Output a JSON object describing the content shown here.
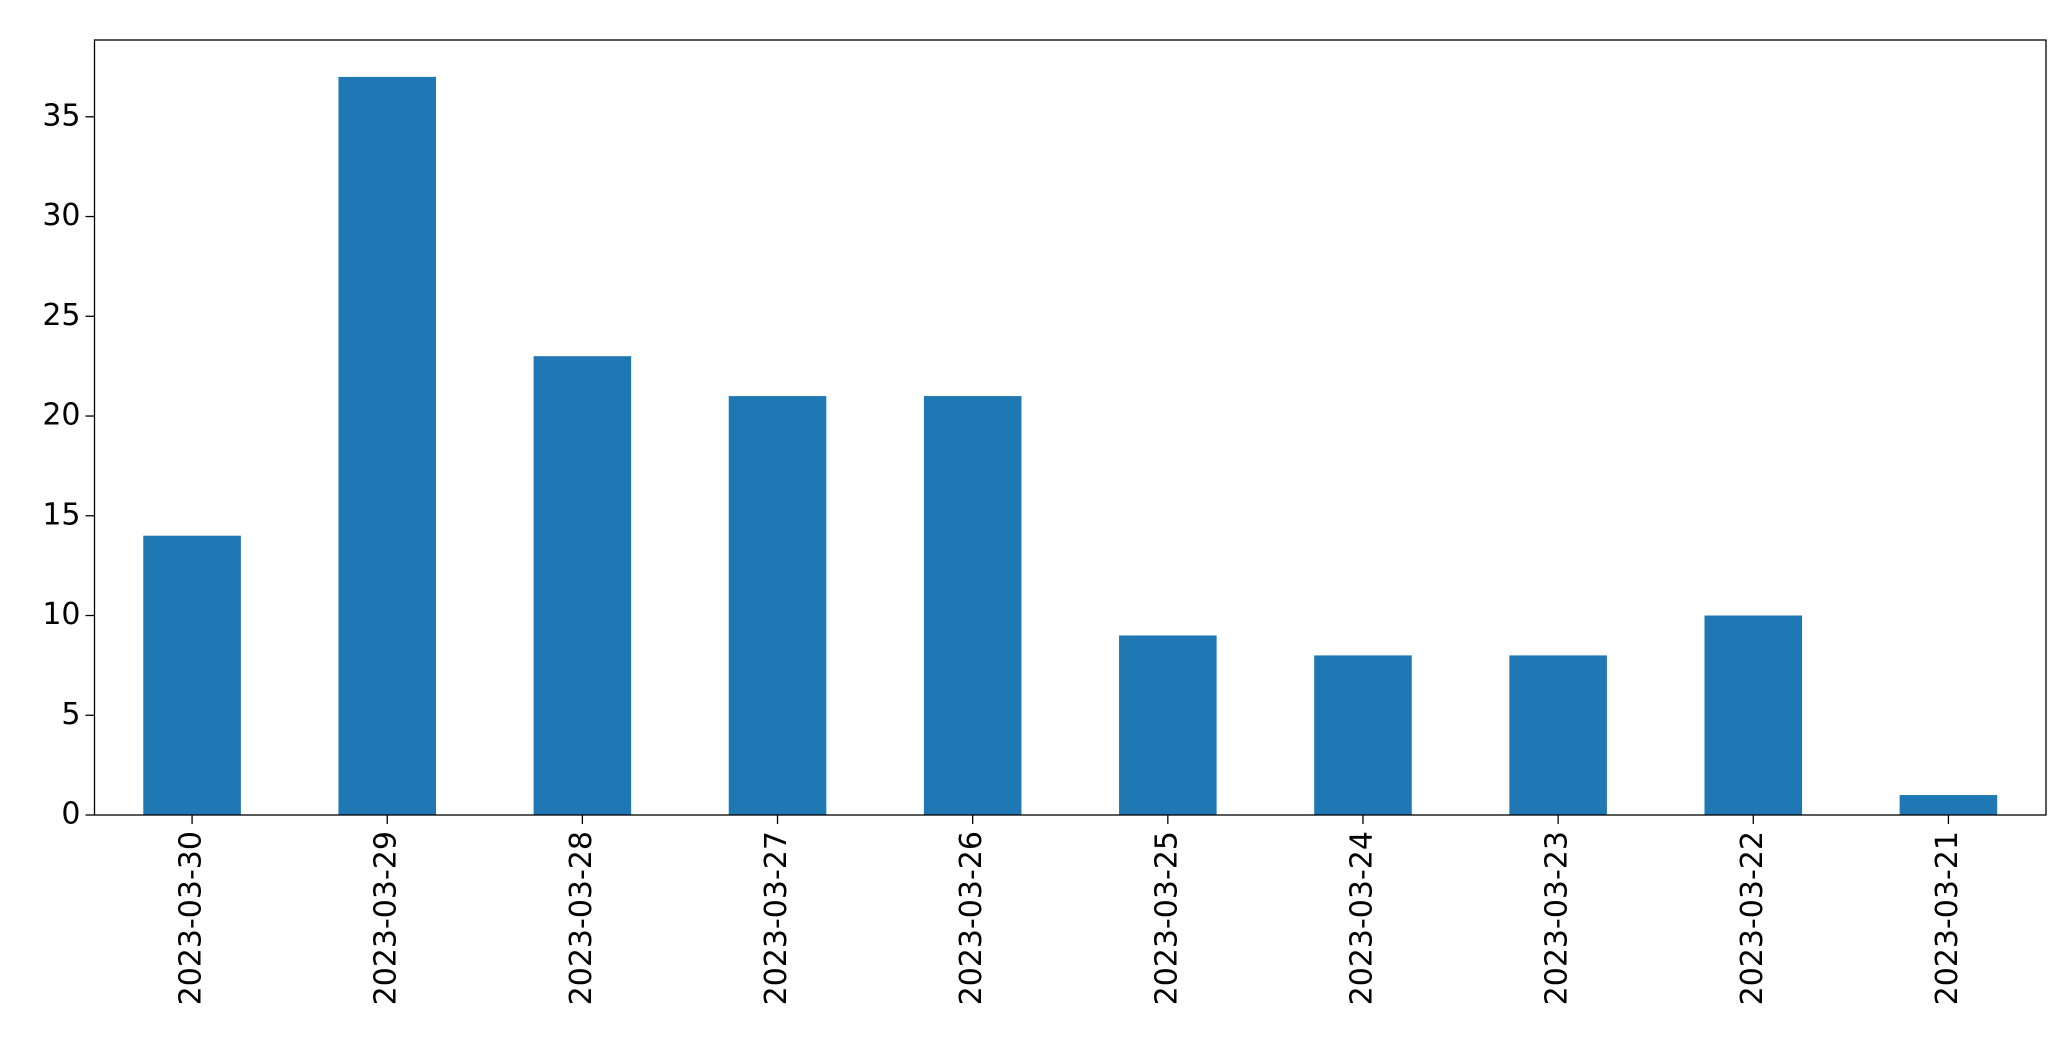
{
  "chart_data": {
    "type": "bar",
    "categories": [
      "2023-03-30",
      "2023-03-29",
      "2023-03-28",
      "2023-03-27",
      "2023-03-26",
      "2023-03-25",
      "2023-03-24",
      "2023-03-23",
      "2023-03-22",
      "2023-03-21"
    ],
    "values": [
      14,
      37,
      23,
      21,
      21,
      9,
      8,
      8,
      10,
      1
    ],
    "color": "#1f77b4",
    "ylim": [
      0,
      38.85
    ],
    "yticks": [
      0,
      5,
      10,
      15,
      20,
      25,
      30,
      35
    ],
    "grid": false
  }
}
